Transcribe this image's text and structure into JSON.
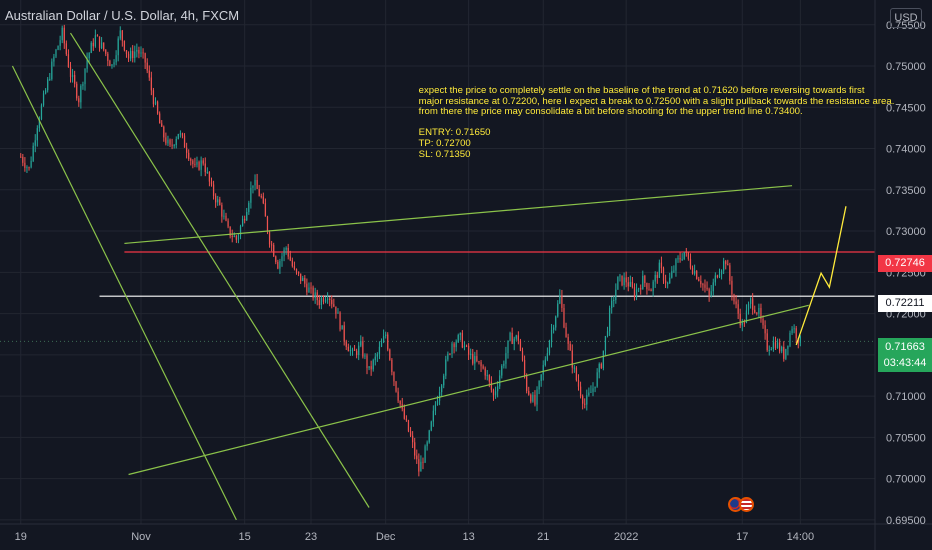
{
  "header": {
    "title": "Australian Dollar / U.S. Dollar, 4h, FXCM",
    "currency": "USD"
  },
  "annotation": {
    "lines": [
      " expect the price to completely settle on the baseline of the trend at 0.71620 before reversing towards first",
      " major resistance at 0.72200, here I expect a break to 0.72500 with a slight pullback towards the resistance area.",
      " from there the price may consolidate a bit before shooting for the upper trend line 0.73400.",
      "",
      " ENTRY: 0.71650",
      " TP: 0.72700",
      " SL: 0.71350"
    ]
  },
  "price_labels": {
    "resistance_upper": "0.72746",
    "resistance_lower": "0.72211",
    "current_price": "0.71663",
    "countdown": "03:43:44"
  },
  "colors": {
    "background": "#131722",
    "grid": "#222631",
    "up_candle": "#26a69a",
    "down_candle": "#ef5350",
    "trend_lines": "#8bc34a",
    "projection": "#ffeb3b",
    "resistance_upper": "#f23645",
    "resistance_lower": "#ffffff",
    "text": "#b2b5be"
  },
  "chart_data": {
    "type": "candlestick",
    "title": "Australian Dollar / U.S. Dollar, 4h, FXCM",
    "ylim": [
      0.6945,
      0.758
    ],
    "y_ticks": [
      0.755,
      0.75,
      0.745,
      0.74,
      0.735,
      0.73,
      0.725,
      0.72,
      0.715,
      0.71,
      0.705,
      0.7,
      0.695
    ],
    "y_tick_labels": [
      "0.75500",
      "0.75000",
      "0.74500",
      "0.74000",
      "0.73500",
      "0.73000",
      "0.72500",
      "0.72000",
      "0.71500",
      "0.71000",
      "0.70500",
      "0.70000",
      "0.69500"
    ],
    "x_ticks": [
      "19",
      "Nov",
      "15",
      "23",
      "Dec",
      "13",
      "21",
      "2022",
      "17",
      "14:00"
    ],
    "x_tick_pos": [
      0,
      14.5,
      27,
      35,
      44,
      54,
      63,
      73,
      87,
      94
    ],
    "x_range": [
      -2.5,
      103
    ],
    "close_path": [
      [
        0,
        0.739
      ],
      [
        1,
        0.7375
      ],
      [
        2,
        0.743
      ],
      [
        3,
        0.747
      ],
      [
        4,
        0.751
      ],
      [
        5,
        0.754
      ],
      [
        6,
        0.749
      ],
      [
        7,
        0.746
      ],
      [
        8,
        0.751
      ],
      [
        9,
        0.7535
      ],
      [
        10,
        0.752
      ],
      [
        11,
        0.75
      ],
      [
        12,
        0.754
      ],
      [
        13,
        0.751
      ],
      [
        14,
        0.752
      ],
      [
        15,
        0.7505
      ],
      [
        16,
        0.746
      ],
      [
        17,
        0.742
      ],
      [
        18,
        0.74
      ],
      [
        19,
        0.742
      ],
      [
        20,
        0.74
      ],
      [
        21,
        0.7375
      ],
      [
        22,
        0.7385
      ],
      [
        23,
        0.735
      ],
      [
        24,
        0.733
      ],
      [
        25,
        0.73
      ],
      [
        26,
        0.729
      ],
      [
        27,
        0.732
      ],
      [
        28,
        0.736
      ],
      [
        29,
        0.734
      ],
      [
        30,
        0.729
      ],
      [
        31,
        0.726
      ],
      [
        32,
        0.728
      ],
      [
        33,
        0.725
      ],
      [
        34,
        0.724
      ],
      [
        35,
        0.7225
      ],
      [
        36,
        0.7215
      ],
      [
        37,
        0.7225
      ],
      [
        38,
        0.7205
      ],
      [
        39,
        0.717
      ],
      [
        40,
        0.715
      ],
      [
        41,
        0.716
      ],
      [
        42,
        0.713
      ],
      [
        43,
        0.715
      ],
      [
        44,
        0.7175
      ],
      [
        45,
        0.712
      ],
      [
        46,
        0.708
      ],
      [
        47,
        0.705
      ],
      [
        48,
        0.701
      ],
      [
        49,
        0.704
      ],
      [
        50,
        0.709
      ],
      [
        51,
        0.713
      ],
      [
        52,
        0.7165
      ],
      [
        53,
        0.717
      ],
      [
        54,
        0.715
      ],
      [
        55,
        0.714
      ],
      [
        56,
        0.713
      ],
      [
        57,
        0.71
      ],
      [
        58,
        0.7135
      ],
      [
        59,
        0.717
      ],
      [
        60,
        0.717
      ],
      [
        61,
        0.711
      ],
      [
        62,
        0.709
      ],
      [
        63,
        0.7135
      ],
      [
        64,
        0.718
      ],
      [
        65,
        0.722
      ],
      [
        66,
        0.716
      ],
      [
        67,
        0.712
      ],
      [
        68,
        0.709
      ],
      [
        69,
        0.711
      ],
      [
        70,
        0.714
      ],
      [
        71,
        0.72
      ],
      [
        72,
        0.724
      ],
      [
        73,
        0.724
      ],
      [
        74,
        0.7225
      ],
      [
        75,
        0.724
      ],
      [
        76,
        0.723
      ],
      [
        77,
        0.7255
      ],
      [
        78,
        0.7235
      ],
      [
        79,
        0.726
      ],
      [
        80,
        0.7275
      ],
      [
        81,
        0.7255
      ],
      [
        82,
        0.724
      ],
      [
        83,
        0.722
      ],
      [
        84,
        0.725
      ],
      [
        85,
        0.7265
      ],
      [
        86,
        0.7215
      ],
      [
        87,
        0.7185
      ],
      [
        88,
        0.7215
      ],
      [
        89,
        0.72
      ],
      [
        90,
        0.716
      ],
      [
        91,
        0.7165
      ],
      [
        92,
        0.715
      ],
      [
        93,
        0.7185
      ],
      [
        94,
        0.7166
      ]
    ],
    "channels": [
      {
        "name": "",
        "points": [
          [
            -1,
            0.75
          ],
          [
            26,
            0.695
          ]
        ],
        "color": "#8bc34a"
      },
      {
        "name": "",
        "points": [
          [
            6,
            0.754
          ],
          [
            42,
            0.6965
          ]
        ],
        "color": "#8bc34a"
      },
      {
        "name": "",
        "points": [
          [
            12.5,
            0.7285
          ],
          [
            93,
            0.7355
          ]
        ],
        "color": "#8bc34a"
      },
      {
        "name": "",
        "points": [
          [
            13,
            0.7005
          ],
          [
            95,
            0.721
          ]
        ],
        "color": "#8bc34a"
      }
    ],
    "resistance": [
      {
        "value": 0.72746,
        "from": 12.5,
        "color": "#f23645"
      },
      {
        "value": 0.72211,
        "from": 9.5,
        "color": "#ffffff"
      }
    ],
    "current_price": 0.71663,
    "projection": [
      [
        93.5,
        0.7162
      ],
      [
        96.5,
        0.7249
      ],
      [
        97.5,
        0.7232
      ],
      [
        99.5,
        0.733
      ]
    ]
  }
}
